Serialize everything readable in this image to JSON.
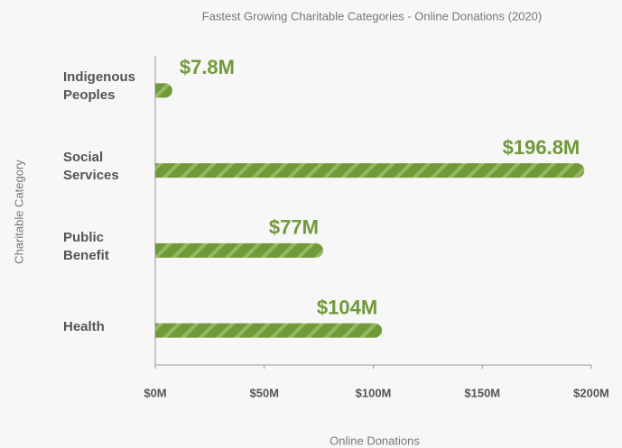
{
  "chart_data": {
    "type": "bar",
    "orientation": "horizontal",
    "title": "Fastest Growing Charitable Categories - Online Donations (2020)",
    "xlabel": "Online Donations",
    "ylabel": "Charitable Category",
    "categories": [
      "Indigenous Peoples",
      "Social Services",
      "Public Benefit",
      "Health"
    ],
    "values": [
      7.8,
      196.8,
      77,
      104
    ],
    "value_labels": [
      "$7.8M",
      "$196.8M",
      "$77M",
      "$104M"
    ],
    "color": "#6f9a37",
    "xlim": [
      0,
      200
    ],
    "xticks": [
      {
        "value": 0,
        "label": "$0M"
      },
      {
        "value": 50,
        "label": "$50M"
      },
      {
        "value": 100,
        "label": "$100M"
      },
      {
        "value": 150,
        "label": "$150M"
      },
      {
        "value": 200,
        "label": "$200M"
      }
    ],
    "grid": false
  }
}
